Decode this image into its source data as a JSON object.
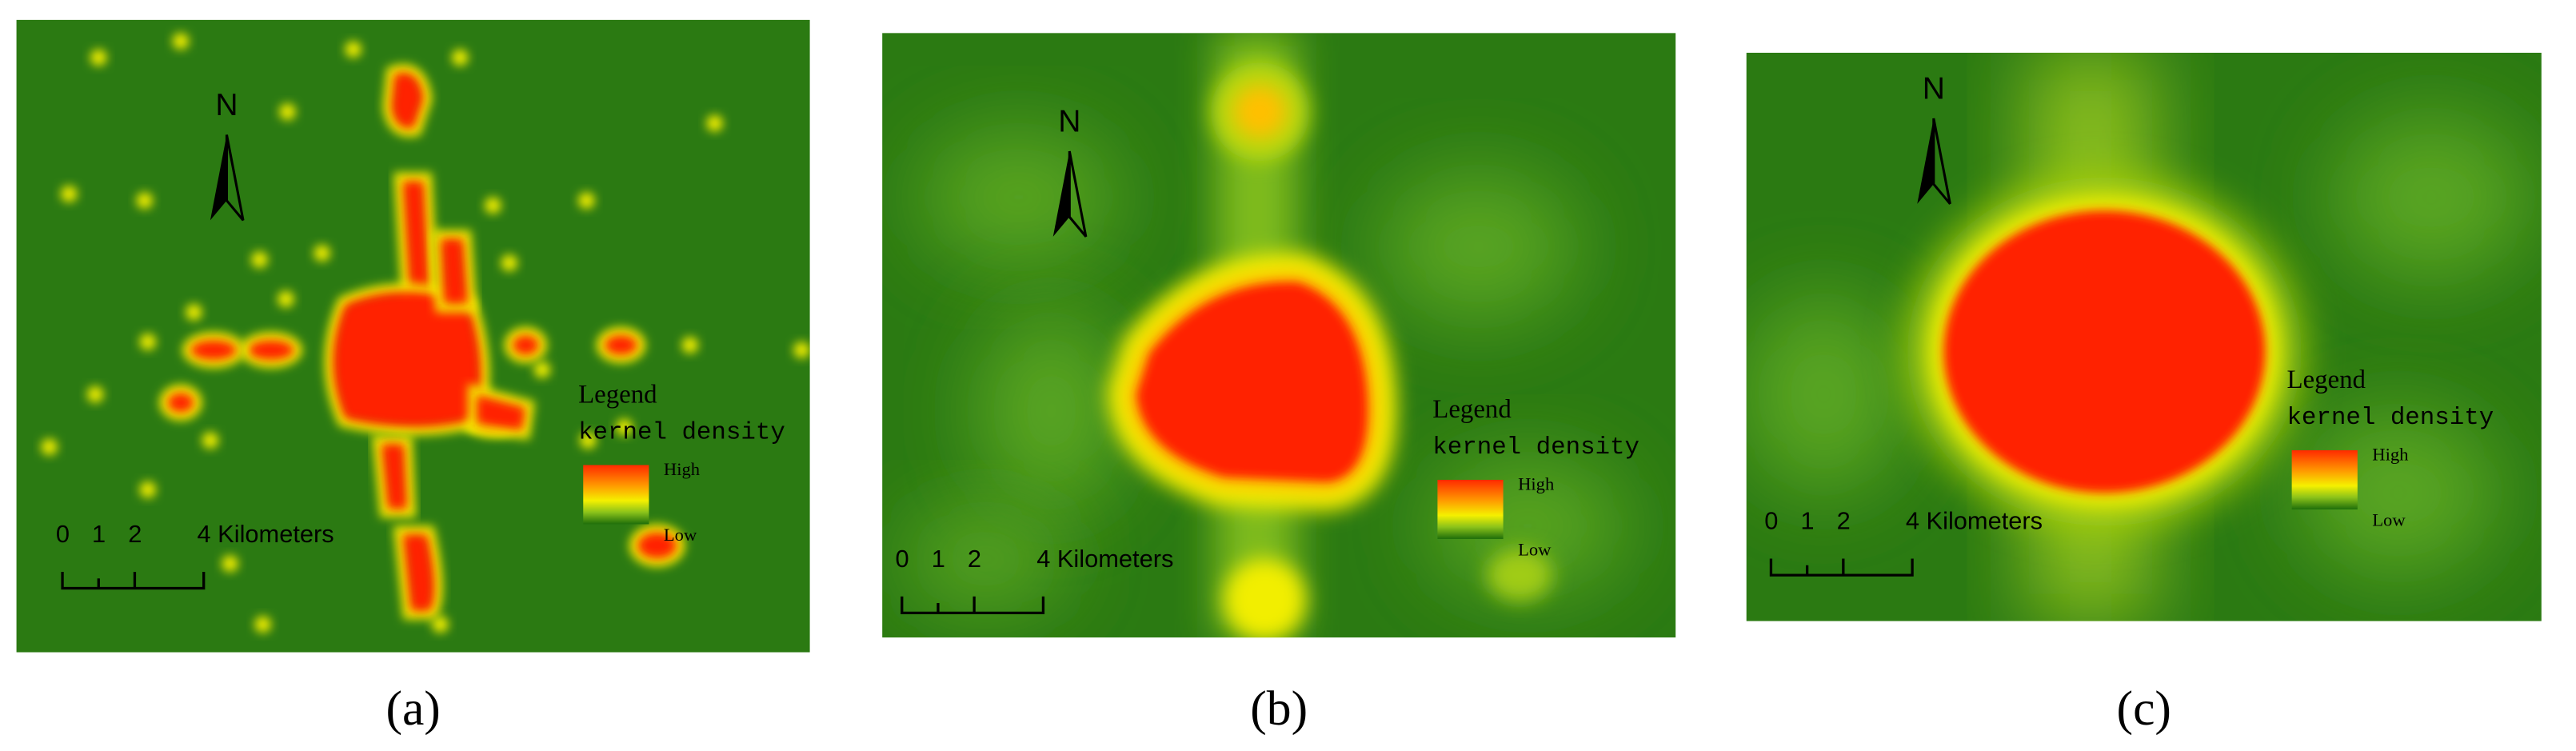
{
  "panels": [
    {
      "label": "(a)",
      "north": "N",
      "legend": {
        "title": "Legend",
        "subtitle": "kernel density",
        "high": "High",
        "low": "Low"
      },
      "scale_bar": {
        "labels": [
          "0",
          "1",
          "2",
          "4 Kilometers"
        ]
      }
    },
    {
      "label": "(b)",
      "north": "N",
      "legend": {
        "title": "Legend",
        "subtitle": "kernel density",
        "high": "High",
        "low": "Low"
      },
      "scale_bar": {
        "labels": [
          "0",
          "1",
          "2",
          "4 Kilometers"
        ]
      }
    },
    {
      "label": "(c)",
      "north": "N",
      "legend": {
        "title": "Legend",
        "subtitle": "kernel density",
        "high": "High",
        "low": "Low"
      },
      "scale_bar": {
        "labels": [
          "0",
          "1",
          "2",
          "4 Kilometers"
        ]
      }
    }
  ]
}
